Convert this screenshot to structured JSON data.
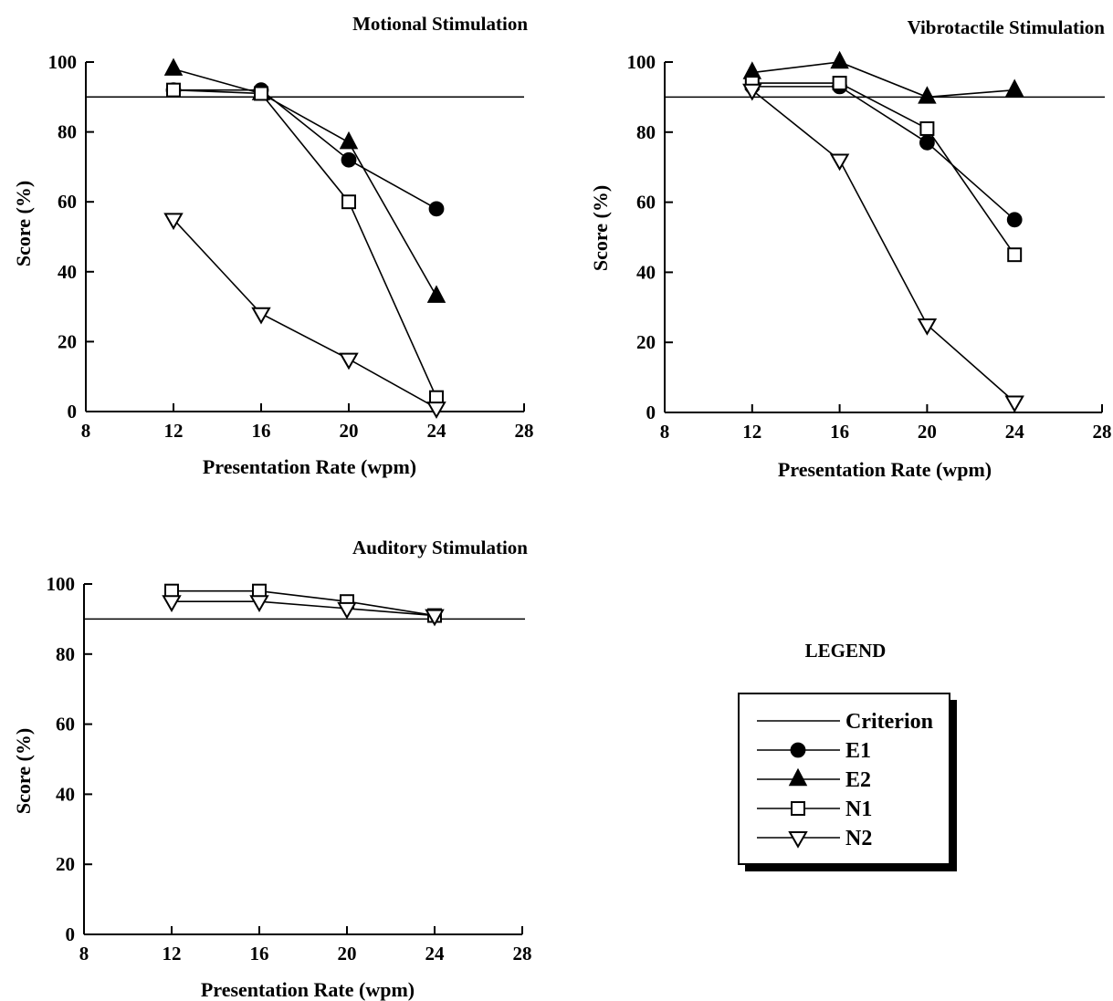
{
  "chart_data": [
    {
      "type": "line",
      "title": "Motional Stimulation",
      "xlabel": "Presentation Rate (wpm)",
      "ylabel": "Score (%)",
      "xlim": [
        8,
        28
      ],
      "ylim": [
        0,
        100
      ],
      "xticks": [
        8,
        12,
        16,
        20,
        24,
        28
      ],
      "yticks": [
        0,
        20,
        40,
        60,
        80,
        100
      ],
      "criterion": 90,
      "x": [
        12,
        16,
        20,
        24
      ],
      "series": [
        {
          "name": "E1",
          "marker": "circle",
          "values": [
            92,
            92,
            72,
            58
          ]
        },
        {
          "name": "E2",
          "marker": "triangle-up",
          "values": [
            98,
            91,
            77,
            33
          ]
        },
        {
          "name": "N1",
          "marker": "square",
          "values": [
            92,
            91,
            60,
            4
          ]
        },
        {
          "name": "N2",
          "marker": "triangle-down",
          "values": [
            55,
            28,
            15,
            1
          ]
        }
      ]
    },
    {
      "type": "line",
      "title": "Vibrotactile Stimulation",
      "xlabel": "Presentation Rate (wpm)",
      "ylabel": "Score (%)",
      "xlim": [
        8,
        28
      ],
      "ylim": [
        0,
        100
      ],
      "xticks": [
        8,
        12,
        16,
        20,
        24,
        28
      ],
      "yticks": [
        0,
        20,
        40,
        60,
        80,
        100
      ],
      "criterion": 90,
      "x": [
        12,
        16,
        20,
        24
      ],
      "series": [
        {
          "name": "E1",
          "marker": "circle",
          "values": [
            93,
            93,
            77,
            55
          ]
        },
        {
          "name": "E2",
          "marker": "triangle-up",
          "values": [
            97,
            100,
            90,
            92
          ]
        },
        {
          "name": "N1",
          "marker": "square",
          "values": [
            94,
            94,
            81,
            45
          ]
        },
        {
          "name": "N2",
          "marker": "triangle-down",
          "values": [
            92,
            72,
            25,
            3
          ]
        }
      ]
    },
    {
      "type": "line",
      "title": "Auditory Stimulation",
      "xlabel": "Presentation Rate (wpm)",
      "ylabel": "Score (%)",
      "xlim": [
        8,
        28
      ],
      "ylim": [
        0,
        100
      ],
      "xticks": [
        8,
        12,
        16,
        20,
        24,
        28
      ],
      "yticks": [
        0,
        20,
        40,
        60,
        80,
        100
      ],
      "criterion": 90,
      "x": [
        12,
        16,
        20,
        24
      ],
      "series": [
        {
          "name": "N1",
          "marker": "square",
          "values": [
            98,
            98,
            95,
            91
          ]
        },
        {
          "name": "N2",
          "marker": "triangle-down",
          "values": [
            95,
            95,
            93,
            91
          ]
        }
      ]
    }
  ],
  "legend": {
    "title": "LEGEND",
    "entries": [
      {
        "label": "Criterion",
        "marker": "none"
      },
      {
        "label": "E1",
        "marker": "circle"
      },
      {
        "label": "E2",
        "marker": "triangle-up"
      },
      {
        "label": "N1",
        "marker": "square"
      },
      {
        "label": "N2",
        "marker": "triangle-down"
      }
    ]
  }
}
